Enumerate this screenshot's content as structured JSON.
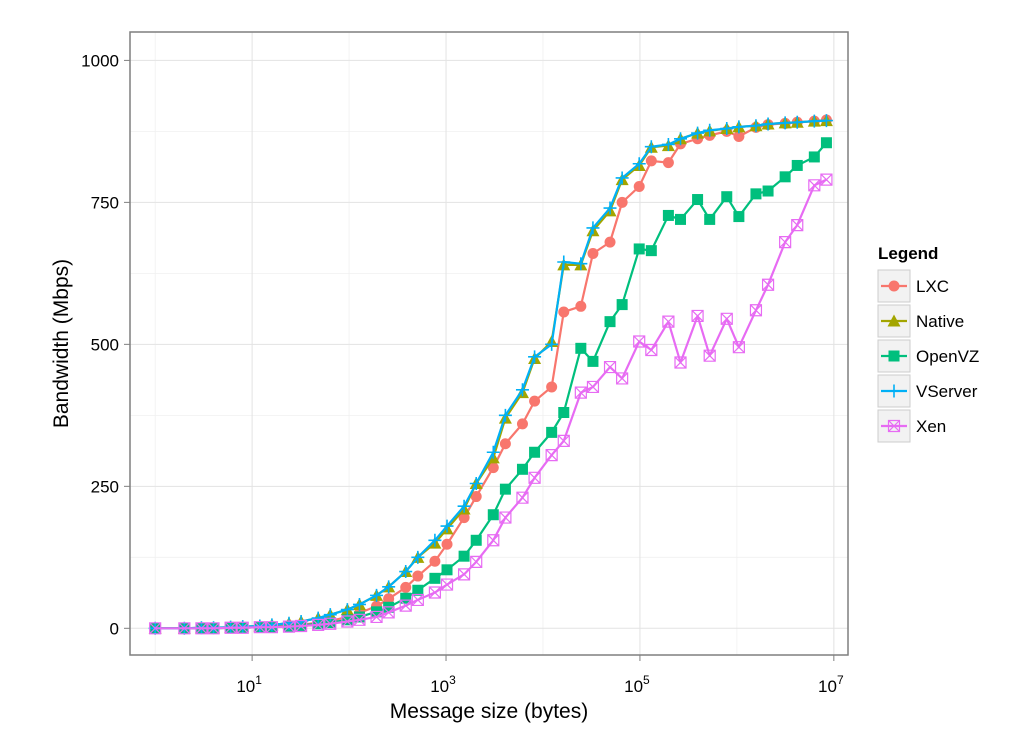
{
  "chart_data": {
    "type": "line",
    "xlabel": "Message size (bytes)",
    "ylabel": "Bandwidth (Mbps)",
    "x_scale": "log10",
    "xlim": [
      0.55,
      14000000
    ],
    "ylim": [
      -47,
      1050
    ],
    "x_ticks": [
      10,
      1000,
      100000,
      10000000
    ],
    "x_tick_base": "10",
    "x_tick_exponents": [
      "1",
      "3",
      "5",
      "7"
    ],
    "y_ticks": [
      0,
      250,
      500,
      750,
      1000
    ],
    "y_tick_labels": [
      "0",
      "250",
      "500",
      "750",
      "1000"
    ],
    "grid": true,
    "legend": {
      "title": "Legend",
      "position": "right",
      "entries": [
        "LXC",
        "Native",
        "OpenVZ",
        "VServer",
        "Xen"
      ]
    },
    "x": [
      1,
      2,
      3,
      4,
      6,
      8,
      12,
      16,
      24,
      32,
      48,
      64,
      96,
      128,
      192,
      256,
      384,
      512,
      768,
      1024,
      1536,
      2048,
      3072,
      4096,
      6144,
      8192,
      12288,
      16384,
      24576,
      32768,
      49152,
      65536,
      98304,
      131072,
      196608,
      262144,
      393216,
      524288,
      786432,
      1048576,
      1572864,
      2097152,
      3145728,
      4194304,
      6291456,
      8388608
    ],
    "series": [
      {
        "name": "LXC",
        "color": "#F8766D",
        "marker": "circle",
        "values": [
          0,
          0,
          0,
          0,
          1,
          1,
          2,
          3,
          5,
          6,
          10,
          13,
          20,
          27,
          39,
          52,
          72,
          92,
          118,
          148,
          195,
          232,
          283,
          325,
          360,
          400,
          425,
          557,
          567,
          660,
          680,
          750,
          778,
          823,
          820,
          853,
          862,
          868,
          875,
          866,
          882,
          887,
          889,
          891,
          893,
          895
        ]
      },
      {
        "name": "Native",
        "color": "#A3A500",
        "marker": "triangle",
        "values": [
          0,
          0,
          1,
          1,
          2,
          3,
          4,
          6,
          9,
          12,
          18,
          24,
          33,
          42,
          58,
          73,
          100,
          125,
          150,
          175,
          210,
          255,
          300,
          370,
          415,
          475,
          505,
          640,
          640,
          700,
          735,
          790,
          815,
          847,
          850,
          862,
          872,
          876,
          880,
          883,
          885,
          888,
          890,
          891,
          893,
          894
        ]
      },
      {
        "name": "OpenVZ",
        "color": "#00BF7D",
        "marker": "square",
        "values": [
          0,
          0,
          0,
          0,
          1,
          1,
          2,
          2,
          4,
          5,
          8,
          10,
          15,
          20,
          29,
          37,
          53,
          67,
          88,
          103,
          127,
          155,
          200,
          245,
          280,
          310,
          345,
          380,
          493,
          470,
          540,
          570,
          668,
          665,
          727,
          720,
          755,
          720,
          760,
          725,
          765,
          770,
          795,
          815,
          830,
          855
        ]
      },
      {
        "name": "VServer",
        "color": "#00B0F6",
        "marker": "plus",
        "values": [
          0,
          0,
          1,
          1,
          2,
          3,
          4,
          6,
          9,
          12,
          18,
          24,
          33,
          42,
          58,
          73,
          100,
          125,
          155,
          180,
          215,
          255,
          310,
          375,
          420,
          478,
          500,
          645,
          642,
          705,
          740,
          793,
          818,
          848,
          852,
          862,
          872,
          877,
          880,
          883,
          885,
          888,
          890,
          891,
          893,
          894
        ]
      },
      {
        "name": "Xen",
        "color": "#E76BF3",
        "marker": "boxcross",
        "values": [
          0,
          0,
          0,
          0,
          1,
          1,
          2,
          2,
          3,
          4,
          6,
          8,
          12,
          15,
          20,
          28,
          40,
          50,
          63,
          77,
          95,
          117,
          155,
          195,
          230,
          265,
          305,
          330,
          415,
          425,
          460,
          440,
          505,
          490,
          540,
          468,
          550,
          480,
          545,
          495,
          560,
          605,
          680,
          710,
          780,
          790
        ]
      }
    ]
  }
}
